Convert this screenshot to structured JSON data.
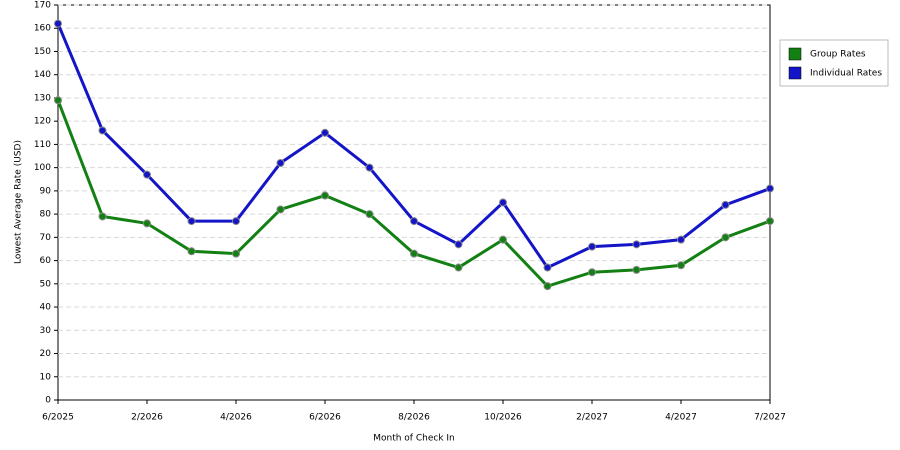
{
  "chart_data": {
    "type": "line",
    "x_label": "Month of Check In",
    "y_label": "Lowest Average Rate (USD)",
    "categories": [
      "6/2025",
      null,
      "2/2026",
      null,
      "4/2026",
      null,
      "6/2026",
      null,
      "8/2026",
      null,
      "10/2026",
      null,
      "2/2027",
      null,
      "4/2027",
      null,
      "7/2027"
    ],
    "series": [
      {
        "name": "Group Rates",
        "color": "#138013",
        "values": [
          129,
          79,
          76,
          64,
          63,
          82,
          88,
          80,
          63,
          57,
          69,
          49,
          55,
          56,
          58,
          70,
          77
        ]
      },
      {
        "name": "Individual Rates",
        "color": "#1414c8",
        "values": [
          162,
          116,
          97,
          77,
          77,
          102,
          115,
          100,
          77,
          67,
          85,
          57,
          66,
          67,
          69,
          84,
          91
        ]
      }
    ],
    "ylim": [
      0,
      170
    ],
    "yticks": [
      0,
      10,
      20,
      30,
      40,
      50,
      60,
      70,
      80,
      90,
      100,
      110,
      120,
      130,
      140,
      150,
      160,
      170
    ],
    "grid": true,
    "legend": "right"
  }
}
